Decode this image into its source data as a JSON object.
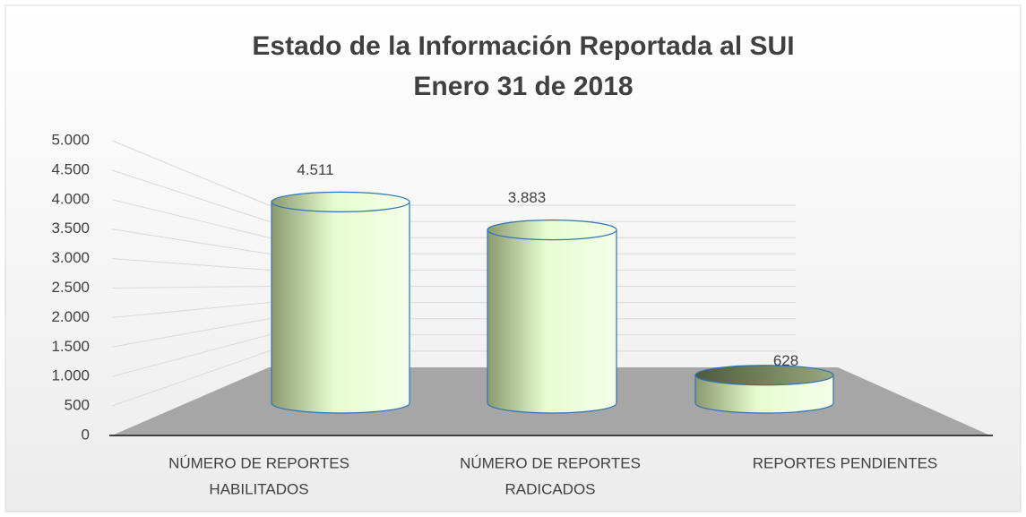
{
  "chart_data": {
    "type": "cylinder",
    "title": "Estado de la Información Reportada al SUI",
    "subtitle": "Enero 31 de 2018",
    "categories": [
      [
        "NÚMERO DE REPORTES",
        "HABILITADOS"
      ],
      [
        "NÚMERO DE REPORTES",
        "RADICADOS"
      ],
      [
        "REPORTES PENDIENTES"
      ]
    ],
    "values": [
      4511,
      3883,
      628
    ],
    "value_labels": [
      "4.511",
      "3.883",
      "628"
    ],
    "ylim": [
      0,
      5000
    ],
    "yticks": [
      0,
      500,
      {
        "value": 1000,
        "label": "1.000"
      },
      {
        "value": 1500,
        "label": "1.500"
      },
      {
        "value": 2000,
        "label": "2.000"
      },
      {
        "value": 2500,
        "label": "2.500"
      },
      {
        "value": 3000,
        "label": "3.000"
      },
      {
        "value": 3500,
        "label": "3.500"
      },
      {
        "value": 4000,
        "label": "4.000"
      },
      {
        "value": 4500,
        "label": "4.500"
      },
      {
        "value": 5000,
        "label": "5.000"
      }
    ],
    "grid": true,
    "color": "#e6fcd0"
  }
}
